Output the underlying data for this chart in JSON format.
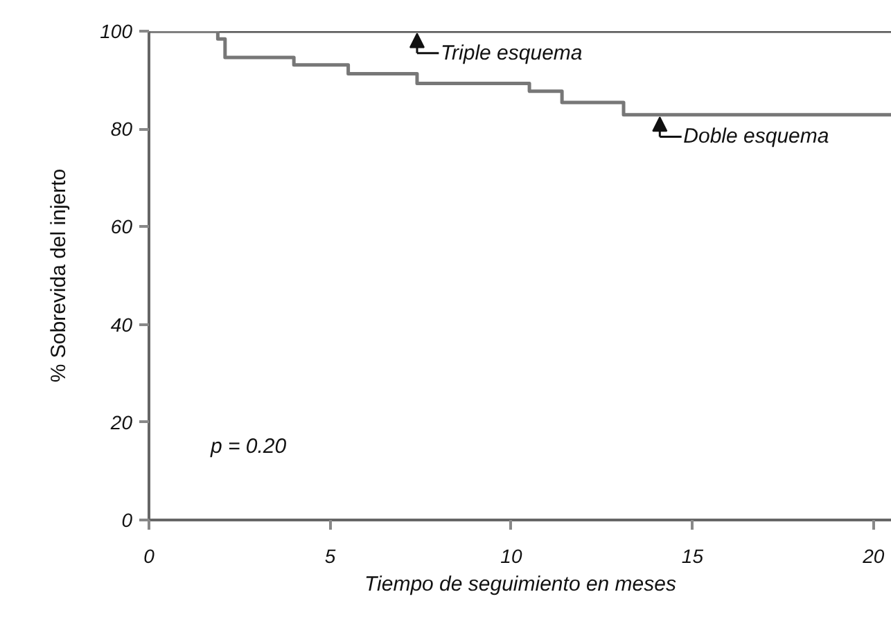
{
  "chart_data": {
    "type": "step",
    "xlabel": "Tiempo de seguimiento en meses",
    "ylabel": "% Sobrevida del injerto",
    "xlim": [
      0,
      20.5
    ],
    "ylim": [
      0,
      100
    ],
    "xticks": [
      0,
      5,
      10,
      15,
      20
    ],
    "yticks": [
      0,
      20,
      40,
      60,
      80,
      100
    ],
    "grid": false,
    "marker": "none",
    "line_style": "solid",
    "series": [
      {
        "color": "#555555",
        "x": [
          0,
          20.5
        ],
        "values": [
          100,
          100
        ]
      },
      {
        "color": "#777777",
        "x": [
          0,
          1.9,
          2.1,
          4.0,
          5.5,
          7.4,
          10.5,
          11.4,
          13.1,
          20.5
        ],
        "values": [
          100,
          98.4,
          94.6,
          93.1,
          91.3,
          89.3,
          87.7,
          85.4,
          82.9,
          82.9
        ]
      }
    ],
    "annotations": [
      {
        "text": "Triple esquema",
        "x": 7.4,
        "y": 100
      },
      {
        "text": "Doble esquema",
        "x": 14.1,
        "y": 82.9
      },
      "p = 0.20"
    ]
  }
}
